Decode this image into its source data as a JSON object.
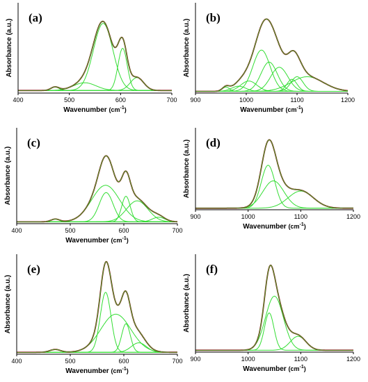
{
  "figure": {
    "colors": {
      "measured": "#8b1a1a",
      "fit": "#32cd32",
      "component": "#33dd33",
      "axis": "#000000"
    }
  },
  "chart_data": [
    {
      "panel_label": "(a)",
      "type": "line",
      "xlabel": "Wavenumber",
      "xunit_base": "(cm",
      "xunit_exp": "-1",
      "xunit_close": ")",
      "ylabel": "Absorbance (a.u.)",
      "xlim": [
        400,
        700
      ],
      "xticks": [
        "400",
        "500",
        "600",
        "700"
      ],
      "ylim": [
        0,
        1.05
      ],
      "baseline": 0.03,
      "peaks": [
        {
          "center": 472,
          "amplitude": 0.04,
          "width": 8
        },
        {
          "center": 530,
          "amplitude": 0.09,
          "width": 22
        },
        {
          "center": 566,
          "amplitude": 0.78,
          "width": 19
        },
        {
          "center": 604,
          "amplitude": 0.49,
          "width": 9
        },
        {
          "center": 632,
          "amplitude": 0.15,
          "width": 13
        }
      ]
    },
    {
      "panel_label": "(b)",
      "type": "line",
      "xlabel": "Wavenumber",
      "xunit_base": "(cm",
      "xunit_exp": "-1",
      "xunit_close": ")",
      "ylabel": "Absorbance (a.u.)",
      "xlim": [
        900,
        1200
      ],
      "xticks": [
        "900",
        "1000",
        "1100",
        "1200"
      ],
      "ylim": [
        0,
        1.05
      ],
      "baseline": 0.02,
      "peaks": [
        {
          "center": 960,
          "amplitude": 0.05,
          "width": 7
        },
        {
          "center": 985,
          "amplitude": 0.06,
          "width": 14
        },
        {
          "center": 1005,
          "amplitude": 0.12,
          "width": 16
        },
        {
          "center": 1030,
          "amplitude": 0.48,
          "width": 17
        },
        {
          "center": 1045,
          "amplitude": 0.34,
          "width": 16
        },
        {
          "center": 1065,
          "amplitude": 0.28,
          "width": 17
        },
        {
          "center": 1090,
          "amplitude": 0.14,
          "width": 10
        },
        {
          "center": 1100,
          "amplitude": 0.17,
          "width": 12
        },
        {
          "center": 1120,
          "amplitude": 0.17,
          "width": 32
        }
      ]
    },
    {
      "panel_label": "(c)",
      "type": "line",
      "xlabel": "Wavenumber",
      "xunit_base": "(cm",
      "xunit_exp": "-1",
      "xunit_close": ")",
      "ylabel": "Absorbance (a.u.)",
      "xlim": [
        400,
        700
      ],
      "xticks": [
        "400",
        "500",
        "600",
        "700"
      ],
      "ylim": [
        0,
        1.05
      ],
      "baseline": 0.02,
      "peaks": [
        {
          "center": 472,
          "amplitude": 0.03,
          "width": 8
        },
        {
          "center": 566,
          "amplitude": 0.4,
          "width": 26
        },
        {
          "center": 567,
          "amplitude": 0.32,
          "width": 13
        },
        {
          "center": 604,
          "amplitude": 0.28,
          "width": 8
        },
        {
          "center": 625,
          "amplitude": 0.23,
          "width": 20
        },
        {
          "center": 665,
          "amplitude": 0.05,
          "width": 12
        }
      ]
    },
    {
      "panel_label": "(d)",
      "type": "line",
      "xlabel": "Wavenumber",
      "xunit_base": "(cm",
      "xunit_exp": "-1",
      "xunit_close": ")",
      "ylabel": "Absorbance (a.u.)",
      "xlim": [
        900,
        1200
      ],
      "xticks": [
        "900",
        "1000",
        "1100",
        "1200"
      ],
      "ylim": [
        0,
        1.05
      ],
      "baseline": 0.02,
      "peaks": [
        {
          "center": 1038,
          "amplitude": 0.55,
          "width": 13
        },
        {
          "center": 1048,
          "amplitude": 0.35,
          "width": 20
        },
        {
          "center": 1100,
          "amplitude": 0.22,
          "width": 24
        }
      ]
    },
    {
      "panel_label": "(e)",
      "type": "line",
      "xlabel": "Wavenumber",
      "xunit_base": "(cm",
      "xunit_exp": "-1",
      "xunit_close": ")",
      "ylabel": "Absorbance (a.u.)",
      "xlim": [
        400,
        700
      ],
      "xticks": [
        "400",
        "500",
        "600",
        "700"
      ],
      "ylim": [
        0,
        1.05
      ],
      "baseline": 0.02,
      "peaks": [
        {
          "center": 472,
          "amplitude": 0.03,
          "width": 10
        },
        {
          "center": 566,
          "amplitude": 0.63,
          "width": 10
        },
        {
          "center": 585,
          "amplitude": 0.4,
          "width": 28
        },
        {
          "center": 604,
          "amplitude": 0.3,
          "width": 8
        },
        {
          "center": 628,
          "amplitude": 0.1,
          "width": 14
        }
      ]
    },
    {
      "panel_label": "(f)",
      "type": "line",
      "xlabel": "Wavenumber",
      "xunit_base": "(cm",
      "xunit_exp": "-1",
      "xunit_close": ")",
      "ylabel": "Absorbance (a.u.)",
      "xlim": [
        900,
        1200
      ],
      "xticks": [
        "900",
        "1000",
        "1100",
        "1200"
      ],
      "ylim": [
        0,
        1.05
      ],
      "baseline": 0.02,
      "peaks": [
        {
          "center": 1040,
          "amplitude": 0.4,
          "width": 9
        },
        {
          "center": 1050,
          "amplitude": 0.58,
          "width": 17
        },
        {
          "center": 1095,
          "amplitude": 0.15,
          "width": 15
        }
      ]
    }
  ]
}
